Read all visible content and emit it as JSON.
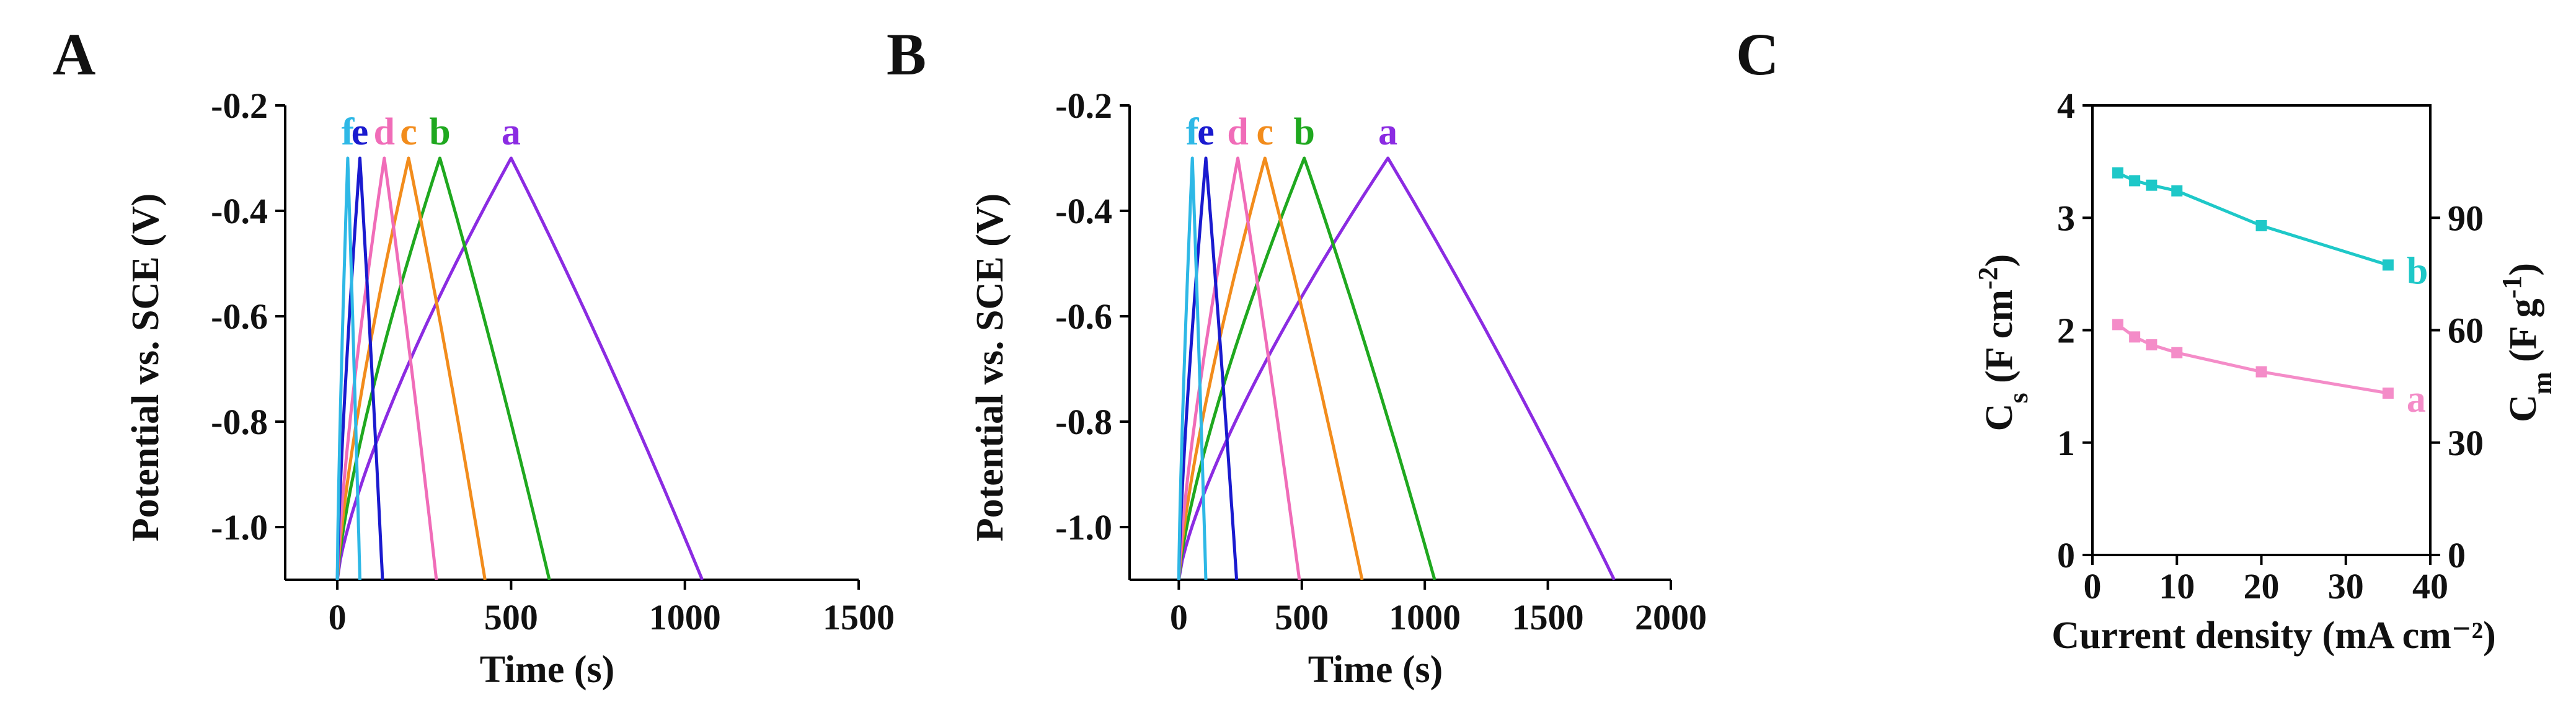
{
  "figure": {
    "panels": [
      "A",
      "B",
      "C"
    ]
  },
  "chart_data": [
    {
      "panel": "A",
      "type": "line",
      "title": "",
      "xlabel": "Time (s)",
      "ylabel": "Potential vs. SCE (V)",
      "xlim": [
        -150,
        1500
      ],
      "ylim": [
        -1.1,
        -0.2
      ],
      "xticks": [
        0,
        500,
        1000,
        1500
      ],
      "xtick_labels": [
        "0",
        "500",
        "1000",
        "1500"
      ],
      "yticks": [
        -0.2,
        -0.4,
        -0.6,
        -0.8,
        -1.0
      ],
      "ytick_labels": [
        "-0.2",
        "-0.4",
        "-0.6",
        "-0.8",
        "-1.0"
      ],
      "series": [
        {
          "name": "a",
          "color": "#8B2BE2",
          "charge_end": 500,
          "discharge_end": 1050,
          "v_min": -1.1,
          "v_max": -0.3
        },
        {
          "name": "b",
          "color": "#1FA81F",
          "charge_end": 295,
          "discharge_end": 610,
          "v_min": -1.1,
          "v_max": -0.3
        },
        {
          "name": "c",
          "color": "#F28C1C",
          "charge_end": 205,
          "discharge_end": 425,
          "v_min": -1.1,
          "v_max": -0.3
        },
        {
          "name": "d",
          "color": "#F06CB8",
          "charge_end": 135,
          "discharge_end": 285,
          "v_min": -1.1,
          "v_max": -0.3
        },
        {
          "name": "e",
          "color": "#1A1ACF",
          "charge_end": 65,
          "discharge_end": 130,
          "v_min": -1.1,
          "v_max": -0.3
        },
        {
          "name": "f",
          "color": "#2EB8E6",
          "charge_end": 30,
          "discharge_end": 65,
          "v_min": -1.1,
          "v_max": -0.3
        }
      ]
    },
    {
      "panel": "B",
      "type": "line",
      "title": "",
      "xlabel": "Time (s)",
      "ylabel": "Potential vs. SCE (V)",
      "xlim": [
        -200,
        2000
      ],
      "ylim": [
        -1.1,
        -0.2
      ],
      "xticks": [
        0,
        500,
        1000,
        1500,
        2000
      ],
      "xtick_labels": [
        "0",
        "500",
        "1000",
        "1500",
        "2000"
      ],
      "yticks": [
        -0.2,
        -0.4,
        -0.6,
        -0.8,
        -1.0
      ],
      "ytick_labels": [
        "-0.2",
        "-0.4",
        "-0.6",
        "-0.8",
        "-1.0"
      ],
      "series": [
        {
          "name": "a",
          "color": "#8B2BE2",
          "charge_end": 850,
          "discharge_end": 1770,
          "v_min": -1.1,
          "v_max": -0.3
        },
        {
          "name": "b",
          "color": "#1FA81F",
          "charge_end": 510,
          "discharge_end": 1040,
          "v_min": -1.1,
          "v_max": -0.3
        },
        {
          "name": "c",
          "color": "#F28C1C",
          "charge_end": 350,
          "discharge_end": 745,
          "v_min": -1.1,
          "v_max": -0.3
        },
        {
          "name": "d",
          "color": "#F06CB8",
          "charge_end": 240,
          "discharge_end": 490,
          "v_min": -1.1,
          "v_max": -0.3
        },
        {
          "name": "e",
          "color": "#1A1ACF",
          "charge_end": 110,
          "discharge_end": 235,
          "v_min": -1.1,
          "v_max": -0.3
        },
        {
          "name": "f",
          "color": "#2EB8E6",
          "charge_end": 55,
          "discharge_end": 110,
          "v_min": -1.1,
          "v_max": -0.3
        }
      ]
    },
    {
      "panel": "C",
      "type": "line",
      "title": "",
      "xlabel": "Current density (mA cm⁻²)",
      "ylabel_left_main": "C",
      "ylabel_left_sub": "s",
      "ylabel_left_units": " (F cm",
      "ylabel_left_exp": "-2",
      "ylabel_right_main": "C",
      "ylabel_right_sub": "m",
      "ylabel_right_units": " (F g",
      "ylabel_right_exp": "-1",
      "xlim": [
        0,
        40
      ],
      "ylim": [
        0,
        4
      ],
      "ylim_right": [
        0,
        120
      ],
      "xticks": [
        0,
        10,
        20,
        30,
        40
      ],
      "xtick_labels": [
        "0",
        "10",
        "20",
        "30",
        "40"
      ],
      "yticks": [
        0,
        1,
        2,
        3,
        4
      ],
      "ytick_labels": [
        "0",
        "1",
        "2",
        "3",
        "4"
      ],
      "yticks_right": [
        0,
        30,
        60,
        90
      ],
      "ytick_labels_right": [
        "0",
        "30",
        "60",
        "90"
      ],
      "series": [
        {
          "name": "b",
          "color": "#1EC8C8",
          "x": [
            3,
            5,
            7,
            10,
            20,
            35
          ],
          "values": [
            3.4,
            3.33,
            3.29,
            3.24,
            2.93,
            2.58
          ]
        },
        {
          "name": "a",
          "color": "#F48CC8",
          "x": [
            3,
            5,
            7,
            10,
            20,
            35
          ],
          "values": [
            2.05,
            1.94,
            1.87,
            1.8,
            1.63,
            1.44
          ]
        }
      ]
    }
  ]
}
